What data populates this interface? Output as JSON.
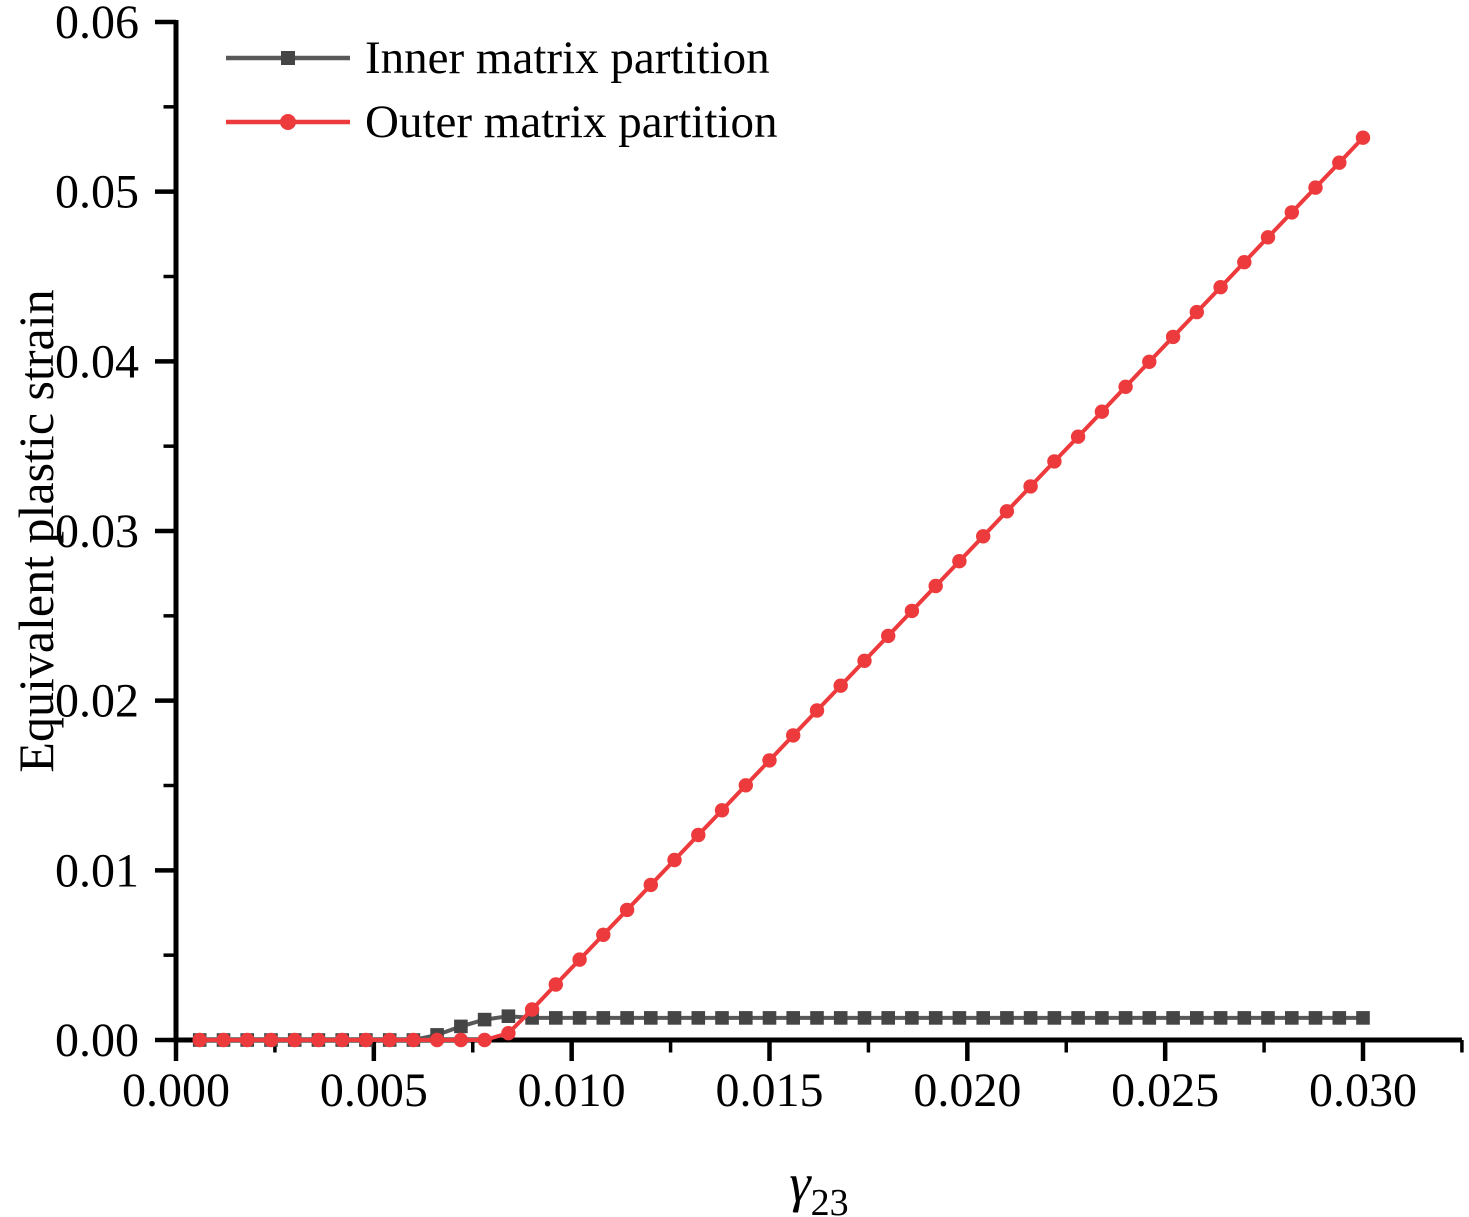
{
  "chart_data": {
    "type": "line",
    "title": "",
    "ylabel": "Equivalent plastic strain",
    "xlabel": {
      "symbol": "γ",
      "subscript": "23"
    },
    "xlim": [
      0,
      0.0325
    ],
    "ylim": [
      0,
      0.06
    ],
    "grid": false,
    "legend_position": "top-left",
    "axis_color": "#000000",
    "x_major_ticks": [
      0.0,
      0.005,
      0.01,
      0.015,
      0.02,
      0.025,
      0.03
    ],
    "x_major_tick_labels": [
      "0.000",
      "0.005",
      "0.010",
      "0.015",
      "0.020",
      "0.025",
      "0.030"
    ],
    "x_minor_ticks": [
      0.0025,
      0.0075,
      0.0125,
      0.0175,
      0.0225,
      0.0275,
      0.0325
    ],
    "y_major_ticks": [
      0.0,
      0.01,
      0.02,
      0.03,
      0.04,
      0.05,
      0.06
    ],
    "y_major_tick_labels": [
      "0.00",
      "0.01",
      "0.02",
      "0.03",
      "0.04",
      "0.05",
      "0.06"
    ],
    "y_minor_ticks": [
      0.005,
      0.015,
      0.025,
      0.035,
      0.045,
      0.055
    ],
    "x": [
      0.0006,
      0.0012,
      0.0018,
      0.0024,
      0.003,
      0.0036,
      0.0042,
      0.0048,
      0.0054,
      0.006,
      0.0066,
      0.0072,
      0.0078,
      0.0084,
      0.009,
      0.0096,
      0.0102,
      0.0108,
      0.0114,
      0.012,
      0.0126,
      0.0132,
      0.0138,
      0.0144,
      0.015,
      0.0156,
      0.0162,
      0.0168,
      0.0174,
      0.018,
      0.0186,
      0.0192,
      0.0198,
      0.0204,
      0.021,
      0.0216,
      0.0222,
      0.0228,
      0.0234,
      0.024,
      0.0246,
      0.0252,
      0.0258,
      0.0264,
      0.027,
      0.0276,
      0.0282,
      0.0288,
      0.0294,
      0.03
    ],
    "series": [
      {
        "name": "Inner matrix partition",
        "marker": "square",
        "line_color": "#585858",
        "marker_color": "#454545",
        "values": [
          0,
          0,
          0,
          0,
          0,
          0,
          0,
          0,
          0,
          0,
          0.0003,
          0.0008,
          0.0012,
          0.0014,
          0.0013,
          0.0013,
          0.0013,
          0.0013,
          0.0013,
          0.0013,
          0.0013,
          0.0013,
          0.0013,
          0.0013,
          0.0013,
          0.0013,
          0.0013,
          0.0013,
          0.0013,
          0.0013,
          0.0013,
          0.0013,
          0.0013,
          0.0013,
          0.0013,
          0.0013,
          0.0013,
          0.0013,
          0.0013,
          0.0013,
          0.0013,
          0.0013,
          0.0013,
          0.0013,
          0.0013,
          0.0013,
          0.0013,
          0.0013,
          0.0013,
          0.0013
        ]
      },
      {
        "name": "Outer matrix partition",
        "marker": "circle",
        "line_color": "#ED3A3C",
        "marker_color": "#ED3A3C",
        "values": [
          0,
          0,
          0,
          0,
          0,
          0,
          0,
          0,
          0,
          0,
          0,
          0,
          0,
          0.0004,
          0.0018,
          0.00327,
          0.00474,
          0.0062,
          0.00767,
          0.00914,
          0.01061,
          0.01208,
          0.01354,
          0.01501,
          0.01648,
          0.01795,
          0.01942,
          0.02088,
          0.02235,
          0.02382,
          0.02529,
          0.02676,
          0.02822,
          0.02969,
          0.03116,
          0.03263,
          0.0341,
          0.03556,
          0.03703,
          0.0385,
          0.03997,
          0.04144,
          0.0429,
          0.04437,
          0.04584,
          0.04731,
          0.04878,
          0.05024,
          0.05171,
          0.05318
        ]
      }
    ]
  }
}
